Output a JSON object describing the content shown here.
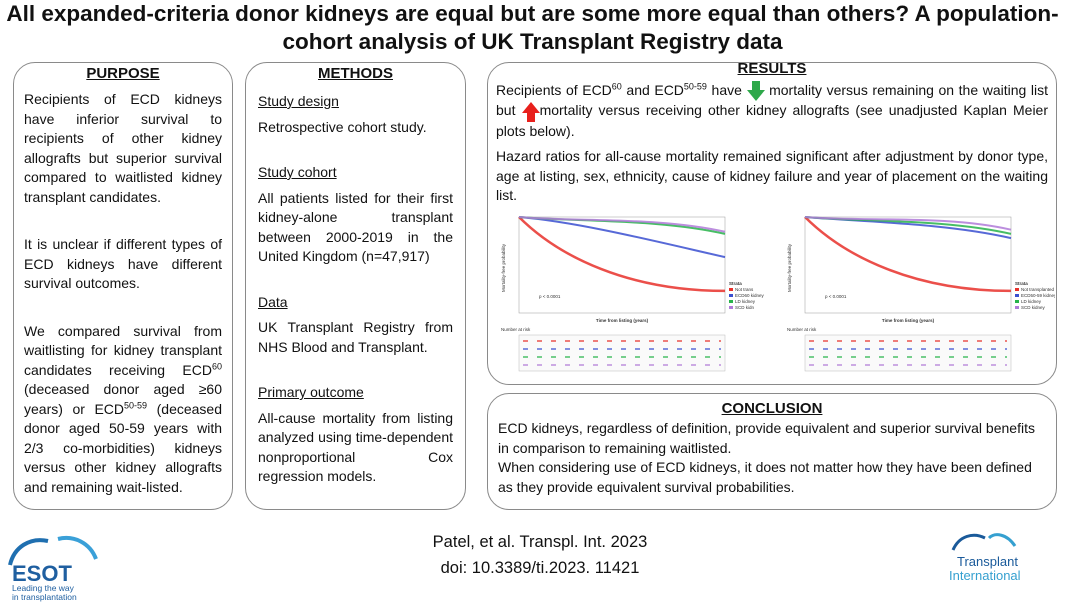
{
  "title": "All expanded-criteria donor kidneys are equal but are some more equal than others? A population-cohort analysis of UK Transplant Registry data",
  "purpose": {
    "heading": "PURPOSE",
    "paragraphs": [
      [
        "Recipients of ECD kidneys have inferior survival to recipients of other kidney allografts but superior survival compared to waitlisted kidney transplant candidates."
      ],
      [
        "It is unclear if different types of ECD kidneys have different survival outcomes."
      ],
      [
        "We compared survival from waitlisting for kidney transplant candidates receiving ECD",
        "60",
        " (deceased donor aged ≥60 years) or ECD",
        "50-59",
        " (deceased donor aged 50-59 years with 2/3 co-morbidities) kidneys versus other kidney allografts and remaining wait-listed."
      ]
    ]
  },
  "methods": {
    "heading": "METHODS",
    "sections": [
      {
        "heading": "Study design",
        "text": "Retrospective cohort study."
      },
      {
        "heading": "Study cohort",
        "text": "All patients listed for their first kidney-alone transplant between 2000-2019 in the United Kingdom (n=47,917)"
      },
      {
        "heading": "Data",
        "text": "UK Transplant Registry from NHS Blood and Transplant."
      },
      {
        "heading": "Primary outcome",
        "text": "All-cause mortality from listing analyzed using time-dependent nonproportional Cox regression models."
      }
    ]
  },
  "results": {
    "heading": "RESULTS",
    "paragraphs": [
      [
        "Recipients of ECD",
        "60",
        " and ECD",
        "50-59",
        " have",
        " mortality versus remaining on the waiting list but",
        "mortality versus receiving other kidney allografts (see unadjusted Kaplan Meier plots below)."
      ],
      [
        "Hazard ratios for all-cause mortality remained significant after adjustment by donor type, age at listing, sex, ethnicity, cause of kidney failure and year of placement on the waiting list."
      ]
    ],
    "plots": [
      {
        "y_label": "Mortality-free probability",
        "x_label": "Time from listing (years)",
        "p_value": "p < 0.0001",
        "legend_title": "Strata",
        "legend": [
          "Not trans",
          "ECD60 kidney",
          "LD kidney",
          "SCD kidn"
        ],
        "risk_title": "Number at risk"
      },
      {
        "y_label": "Mortality-free probability",
        "x_label": "Time from listing (years)",
        "p_value": "p < 0.0001",
        "legend_title": "Strata",
        "legend": [
          "Not transplanted",
          "ECD50-59 kidney",
          "LD kidney",
          "SCD kidney"
        ],
        "risk_title": "Number at risk"
      }
    ]
  },
  "conclusion": {
    "heading": "CONCLUSION",
    "paragraphs": [
      "ECD kidneys, regardless of definition, provide equivalent and superior survival benefits in comparison to remaining waitlisted.",
      "When considering use of ECD kidneys, it does not matter how they have been defined as they provide equivalent survival probabilities."
    ]
  },
  "citation": [
    "Patel, et al. Transpl. Int. 2023",
    "doi: 10.3389/ti.2023. 11421"
  ],
  "logos": {
    "esot": {
      "name": "ESOT",
      "tagline": [
        "Leading the way",
        "in transplantation"
      ]
    },
    "journal": [
      "Transplant",
      "International"
    ]
  }
}
